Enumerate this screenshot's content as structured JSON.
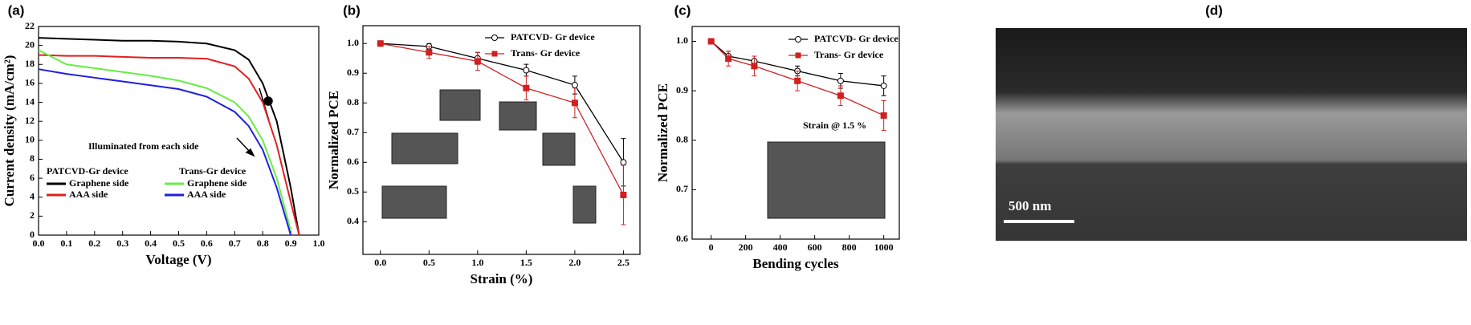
{
  "chart_data": [
    {
      "type": "line",
      "label": "(a)",
      "xlabel": "Voltage (V)",
      "ylabel": "Current density (mA/cm²)",
      "annotation": "Illuminated from each side",
      "legend_groups": [
        "PATCVD-Gr device",
        "Trans-Gr device"
      ],
      "xlim": [
        0,
        1.0
      ],
      "ylim": [
        0,
        22
      ],
      "xticks": [
        {
          "value": 0,
          "label": "0.0"
        },
        0.1,
        0.2,
        0.3,
        0.4,
        0.5,
        0.6,
        0.7,
        0.8,
        0.9,
        {
          "value": 1,
          "label": "1.0"
        }
      ],
      "yticks": [
        0,
        2,
        4,
        6,
        8,
        10,
        12,
        14,
        16,
        18,
        20,
        22
      ],
      "x": [
        0,
        0.1,
        0.2,
        0.3,
        0.4,
        0.5,
        0.6,
        0.7,
        0.75,
        0.8,
        0.85,
        0.9,
        0.93
      ],
      "series": [
        {
          "name": "Graphene side",
          "group": 0,
          "color": "#000000",
          "values": [
            20.8,
            20.7,
            20.6,
            20.5,
            20.5,
            20.4,
            20.2,
            19.5,
            18.5,
            16,
            12,
            5,
            0
          ]
        },
        {
          "name": "AAA side",
          "group": 0,
          "color": "#e02020",
          "values": [
            19,
            18.9,
            18.9,
            18.8,
            18.7,
            18.7,
            18.6,
            17.8,
            16.5,
            14,
            9.5,
            3.5,
            0
          ]
        },
        {
          "name": "Graphene side",
          "group": 1,
          "color": "#66ee44",
          "values": [
            19.5,
            18,
            17.6,
            17.2,
            16.8,
            16.3,
            15.5,
            14,
            12.5,
            10,
            6,
            0.5,
            null
          ]
        },
        {
          "name": "AAA side",
          "group": 1,
          "color": "#2020e0",
          "values": [
            17.5,
            17,
            16.6,
            16.2,
            15.8,
            15.4,
            14.6,
            13,
            11.5,
            9,
            5,
            0,
            null
          ]
        }
      ]
    },
    {
      "type": "line",
      "label": "(b)",
      "xlabel": "Strain (%)",
      "ylabel": "Normalized PCE",
      "xlim": [
        -0.18,
        2.67
      ],
      "ylim": [
        0.29,
        1.06
      ],
      "xticks": [
        {
          "value": 0,
          "label": "0.0"
        },
        0.5,
        {
          "value": 1,
          "label": "1.0"
        },
        1.5,
        {
          "value": 2,
          "label": "2.0"
        },
        2.5
      ],
      "yticks": [
        0.4,
        0.5,
        0.6,
        0.7,
        0.8,
        0.9,
        {
          "value": 1,
          "label": "1.0"
        }
      ],
      "x": [
        0,
        0.5,
        1,
        1.5,
        2,
        2.5
      ],
      "series": [
        {
          "name": "PATCVD- Gr device",
          "color": "#000000",
          "marker": "circle",
          "values": [
            1.0,
            0.99,
            0.95,
            0.91,
            0.86,
            0.6
          ],
          "errors": [
            0,
            0.01,
            0.02,
            0.02,
            0.03,
            0.08
          ]
        },
        {
          "name": "Trans- Gr device",
          "color": "#d02020",
          "marker": "square",
          "values": [
            1.0,
            0.97,
            0.94,
            0.85,
            0.8,
            0.49
          ],
          "errors": [
            0,
            0.02,
            0.03,
            0.04,
            0.05,
            0.1
          ]
        }
      ]
    },
    {
      "type": "line",
      "label": "(c)",
      "xlabel": "Bending cycles",
      "ylabel": "Normalized PCE",
      "annotation": "Strain @ 1.5 %",
      "xlim": [
        -110,
        1090
      ],
      "ylim": [
        0.6,
        1.03
      ],
      "xticks": [
        0,
        200,
        400,
        600,
        800,
        1000
      ],
      "yticks": [
        0.6,
        0.7,
        0.8,
        0.9,
        {
          "value": 1,
          "label": "1.0"
        }
      ],
      "x": [
        0,
        100,
        250,
        500,
        750,
        1000
      ],
      "series": [
        {
          "name": "PATCVD- Gr device",
          "color": "#000000",
          "marker": "circle",
          "values": [
            1.0,
            0.97,
            0.96,
            0.94,
            0.92,
            0.91
          ],
          "errors": [
            0,
            0.01,
            0.01,
            0.01,
            0.015,
            0.02
          ]
        },
        {
          "name": "Trans- Gr device",
          "color": "#d02020",
          "marker": "square",
          "values": [
            1.0,
            0.965,
            0.95,
            0.92,
            0.89,
            0.85
          ],
          "errors": [
            0,
            0.015,
            0.02,
            0.02,
            0.02,
            0.03
          ]
        }
      ]
    }
  ],
  "panel_d": {
    "label": "(d)",
    "scale_bar": "500 nm"
  }
}
